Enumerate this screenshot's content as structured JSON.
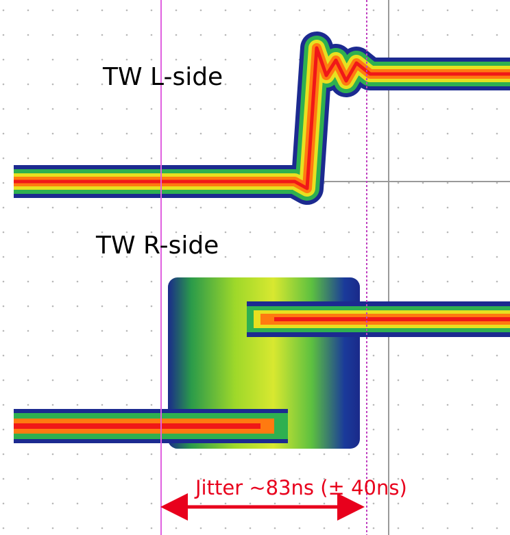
{
  "labels": {
    "top_trace": "TW L-side",
    "bottom_trace": "TW R-side"
  },
  "annotation": "Jitter ~83ns (± 40ns)"
}
